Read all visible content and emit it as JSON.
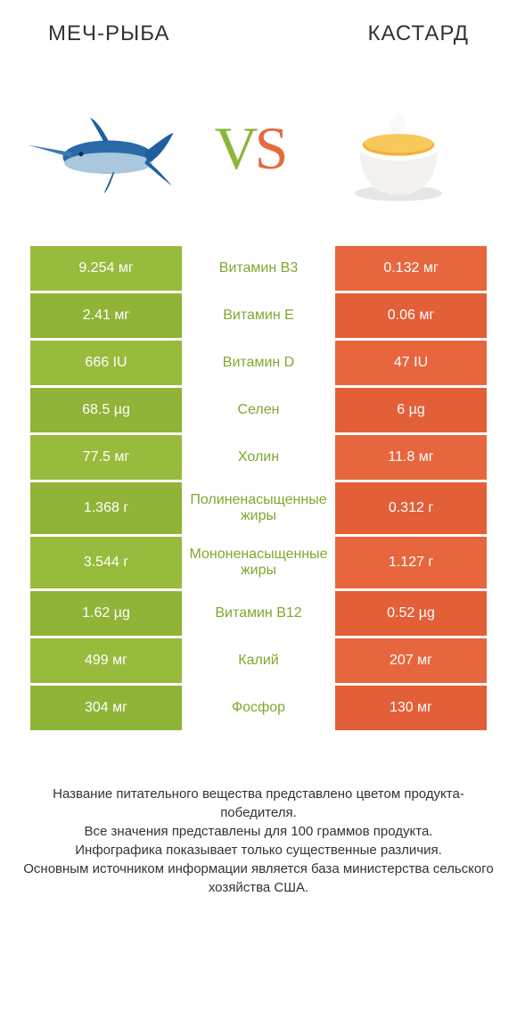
{
  "colors": {
    "green": "#97bb3d",
    "green_alt": "#8fb437",
    "orange": "#e7663e",
    "orange_alt": "#e35f38",
    "label_text": "#7fa82e",
    "label_text_alt": "#7fa82e"
  },
  "titles": {
    "left": "МЕЧ-РЫБА",
    "right": "КАСТАРД"
  },
  "vs": {
    "v": "V",
    "s": "S"
  },
  "rows": [
    {
      "left": "9.254 мг",
      "mid": "Витамин B3",
      "right": "0.132 мг",
      "tall": false
    },
    {
      "left": "2.41 мг",
      "mid": "Витамин E",
      "right": "0.06 мг",
      "tall": false
    },
    {
      "left": "666 IU",
      "mid": "Витамин D",
      "right": "47 IU",
      "tall": false
    },
    {
      "left": "68.5 µg",
      "mid": "Селен",
      "right": "6 µg",
      "tall": false
    },
    {
      "left": "77.5 мг",
      "mid": "Холин",
      "right": "11.8 мг",
      "tall": false
    },
    {
      "left": "1.368 г",
      "mid": "Полиненасыщенные жиры",
      "right": "0.312 г",
      "tall": true
    },
    {
      "left": "3.544 г",
      "mid": "Мононенасыщенные жиры",
      "right": "1.127 г",
      "tall": true
    },
    {
      "left": "1.62 µg",
      "mid": "Витамин B12",
      "right": "0.52 µg",
      "tall": false
    },
    {
      "left": "499 мг",
      "mid": "Калий",
      "right": "207 мг",
      "tall": false
    },
    {
      "left": "304 мг",
      "mid": "Фосфор",
      "right": "130 мг",
      "tall": false
    }
  ],
  "footer_lines": [
    "Название питательного вещества представлено цветом продукта-победителя.",
    "Все значения представлены для 100 граммов продукта.",
    "Инфографика показывает только существенные различия.",
    "Основным источником информации является база министерства сельского хозяйства США."
  ]
}
